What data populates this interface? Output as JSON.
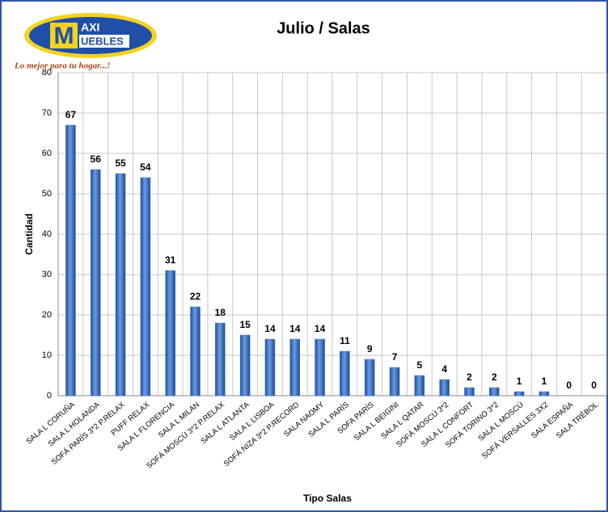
{
  "logo": {
    "initial": "M",
    "brand_top": "AXI",
    "brand_bottom": "UEBLES",
    "tagline": "Lo mejor para tu hogar...!"
  },
  "chart_data": {
    "type": "bar",
    "title": "Julio / Salas",
    "x_label": "Tipo Salas",
    "y_label": "Cantidad",
    "categories": [
      "SALA L CORUÑA",
      "SALA L HOLANDA",
      "SOFÁ PARÍS 3*2 P.RELAX",
      "PUFF RELAX",
      "SALA L FLORENCIA",
      "SALA L MILAN",
      "SOFÁ MOSCÚ 3*2 P.RELAX",
      "SALA L ATLANTA",
      "SALA L LISBOA",
      "SOFÁ NIZA 3*2 P.RECORD",
      "SALA NAOMY",
      "SALA L PARÍS",
      "SOFA PARÍS",
      "SALA L BEIGINI",
      "SALA L QATAR",
      "SOFÁ MOSCÚ 3*2",
      "SALA L CONFORT",
      "SOFÁ TORINO 3*2",
      "SALA L MOSCÚ",
      "SOFÁ VERSALLES 3X2",
      "SALA ESPAÑA",
      "SALA TRÉBOL"
    ],
    "values": [
      67,
      56,
      55,
      54,
      31,
      22,
      18,
      15,
      14,
      14,
      14,
      11,
      9,
      7,
      5,
      4,
      2,
      2,
      1,
      1,
      0,
      0
    ],
    "color": "#3a6fc4",
    "ylim": [
      0,
      80
    ],
    "yticks": [
      0,
      10,
      20,
      30,
      40,
      50,
      60,
      70,
      80
    ],
    "grid": true
  }
}
